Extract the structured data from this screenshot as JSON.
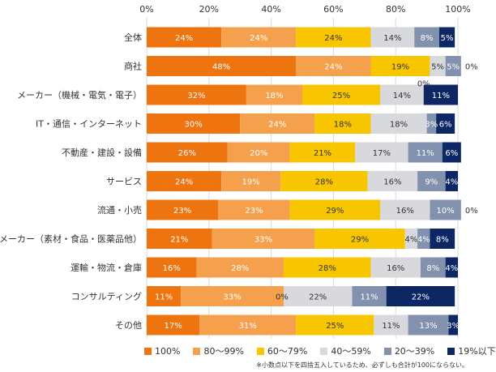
{
  "chart_data": {
    "type": "bar",
    "orientation": "horizontal",
    "stacked": true,
    "xlim": [
      0,
      100
    ],
    "x_ticks": [
      "0%",
      "20%",
      "40%",
      "60%",
      "80%",
      "100%"
    ],
    "categories": [
      "全体",
      "商社",
      "メーカー（機械・電気・電子）",
      "IT・通信・インターネット",
      "不動産・建設・設備",
      "サービス",
      "流通・小売",
      "メーカー（素材・食品・医薬品他）",
      "運輸・物流・倉庫",
      "コンサルティング",
      "その他"
    ],
    "series": [
      {
        "name": "100%",
        "color": "#ee7410",
        "label_color": "#ffffff",
        "values": [
          24,
          48,
          32,
          30,
          26,
          24,
          23,
          21,
          16,
          11,
          17
        ]
      },
      {
        "name": "80〜99%",
        "color": "#f5a04c",
        "label_color": "#ffffff",
        "values": [
          24,
          24,
          18,
          24,
          20,
          19,
          23,
          33,
          28,
          33,
          31
        ]
      },
      {
        "name": "60〜79%",
        "color": "#f7c600",
        "label_color": "#333333",
        "values": [
          24,
          19,
          25,
          18,
          21,
          28,
          29,
          29,
          28,
          0,
          25
        ]
      },
      {
        "name": "40〜59%",
        "color": "#d8d9dc",
        "label_color": "#333333",
        "values": [
          14,
          5,
          14,
          18,
          17,
          16,
          16,
          4,
          16,
          22,
          11
        ]
      },
      {
        "name": "20〜39%",
        "color": "#8291ae",
        "label_color": "#ffffff",
        "values": [
          8,
          5,
          0,
          3,
          11,
          9,
          10,
          4,
          8,
          11,
          13
        ]
      },
      {
        "name": "19%以下",
        "color": "#0d2765",
        "label_color": "#ffffff",
        "values": [
          5,
          0,
          11,
          6,
          6,
          4,
          0,
          8,
          4,
          22,
          3
        ]
      }
    ],
    "legend_position": "bottom",
    "grid": true
  },
  "note": "※小数点以下を四捨五入しているため、必ずしも合計が100にならない。"
}
